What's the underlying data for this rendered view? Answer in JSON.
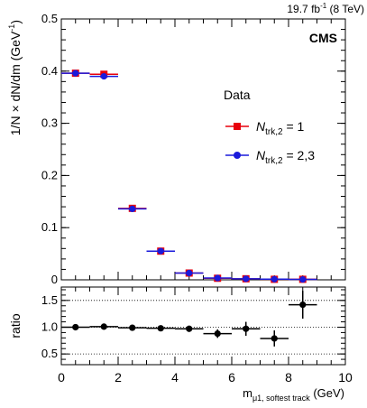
{
  "chart_data": [
    {
      "type": "scatter",
      "lumi_label": "19.7 fb",
      "lumi_sup": "-1",
      "lumi_energy": " (8 TeV)",
      "experiment": "CMS",
      "ylabel": "1/N × dN/dm (GeV",
      "ylabel_sup": "-1",
      "ylabel_close": ")",
      "ylim": [
        0,
        0.5
      ],
      "yticks": [
        0,
        0.1,
        0.2,
        0.3,
        0.4,
        0.5
      ],
      "ytick_labels": [
        "0",
        "0.1",
        "0.2",
        "0.3",
        "0.4",
        "0.5"
      ],
      "xlim": [
        0,
        10
      ],
      "bin_width": 1,
      "legend_header": "Data",
      "legend_position": "right",
      "series": [
        {
          "name": "N",
          "name_sub": "trk,2",
          "name_suffix": " = 1",
          "color": "#e8000b",
          "marker": "square",
          "x": [
            0.5,
            1.5,
            2.5,
            3.5,
            4.5,
            5.5,
            6.5,
            7.5,
            8.5
          ],
          "y": [
            0.396,
            0.394,
            0.137,
            0.055,
            0.013,
            0.003,
            0.002,
            0.001,
            0.001
          ],
          "yerr": [
            0.005,
            0.005,
            0.003,
            0.002,
            0.001,
            0.001,
            0.001,
            0.0005,
            0.0005
          ]
        },
        {
          "name": "N",
          "name_sub": "trk,2",
          "name_suffix": " = 2,3",
          "color": "#1a1adb",
          "marker": "circle",
          "x": [
            0.5,
            1.5,
            2.5,
            3.5,
            4.5,
            5.5,
            6.5,
            7.5,
            8.5
          ],
          "y": [
            0.396,
            0.39,
            0.136,
            0.055,
            0.013,
            0.0034,
            0.002,
            0.0012,
            0.0008
          ],
          "yerr": [
            0.004,
            0.004,
            0.003,
            0.002,
            0.001,
            0.0005,
            0.0005,
            0.0004,
            0.0003
          ]
        }
      ]
    },
    {
      "type": "scatter",
      "ylabel": "ratio",
      "xlabel": "m",
      "xlabel_sub": "μ1, softest track",
      "xlabel_unit": " (GeV)",
      "ylim": [
        0.3,
        1.75
      ],
      "yticks": [
        0.5,
        1.0,
        1.5
      ],
      "ytick_labels": [
        "0.5",
        "1.0",
        "1.5"
      ],
      "xlim": [
        0,
        10
      ],
      "xticks": [
        0,
        2,
        4,
        6,
        8,
        10
      ],
      "xtick_labels": [
        "0",
        "2",
        "4",
        "6",
        "8",
        "10"
      ],
      "reference_lines": [
        0.5,
        1.0,
        1.5
      ],
      "series": [
        {
          "color": "#000000",
          "marker": "circle",
          "x": [
            0.5,
            1.5,
            2.5,
            3.5,
            4.5,
            5.5,
            6.5,
            7.5,
            8.5
          ],
          "y": [
            1.0,
            1.01,
            0.99,
            0.98,
            0.97,
            0.88,
            0.97,
            0.79,
            1.42
          ],
          "yerr": [
            0.03,
            0.03,
            0.03,
            0.04,
            0.05,
            0.08,
            0.13,
            0.15,
            0.26
          ]
        }
      ]
    }
  ]
}
